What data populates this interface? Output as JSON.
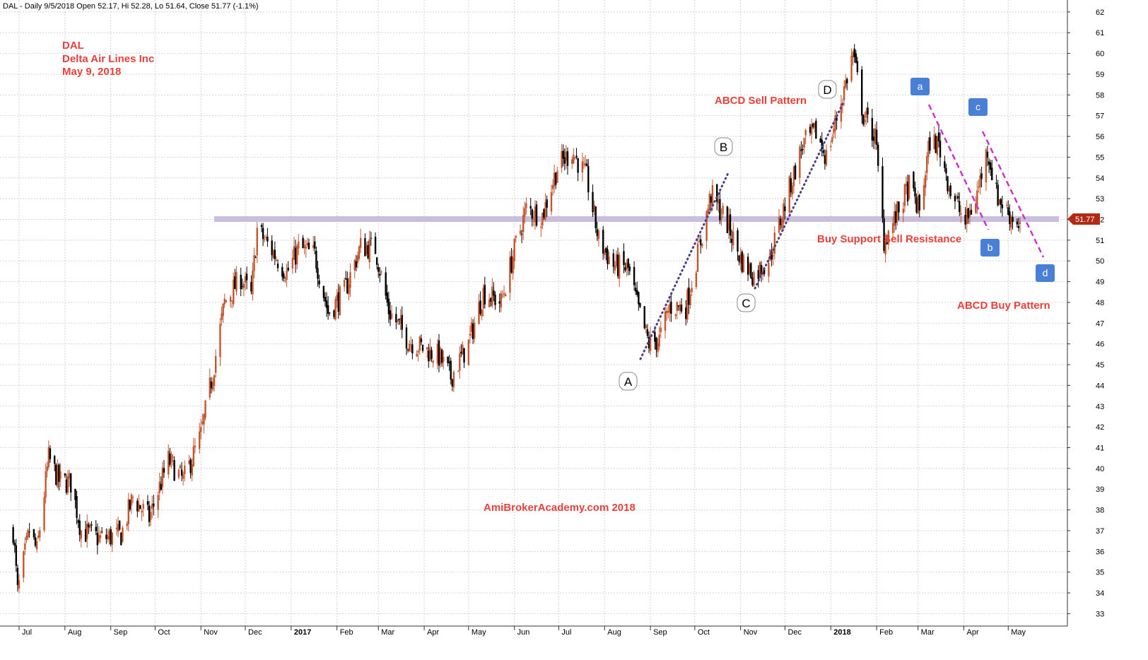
{
  "header": {
    "text": "DAL - Daily 9/5/2018 Open 52.17, Hi 52.28, Lo 51.64, Close 51.77 (-1.1%)"
  },
  "title_block": {
    "line1": "DAL",
    "line2": "Delta Air Lines Inc",
    "line3": "May 9, 2018"
  },
  "annotations": {
    "abcd_sell": "ABCD Sell Pattern",
    "abcd_buy": "ABCD Buy Pattern",
    "support_resistance": "Buy Support Sell Resistance",
    "watermark": "AmiBrokerAcademy.com   2018"
  },
  "colors": {
    "up_candle": "#c4552d",
    "down_candle": "#000000",
    "support_band": "#c9bedd",
    "sell_trend": "#4b3f8a",
    "buy_trend": "#cc33cc",
    "label_red": "#e8413c",
    "square_blue": "#4a7fd6",
    "price_tag": "#b22a14"
  },
  "chart_data": {
    "type": "candlestick",
    "title": "DAL - Daily",
    "ylim": [
      32.4,
      62.2
    ],
    "y_ticks": [
      33,
      34,
      35,
      36,
      37,
      38,
      39,
      40,
      41,
      42,
      43,
      44,
      45,
      46,
      47,
      48,
      49,
      50,
      51,
      52,
      53,
      54,
      55,
      56,
      57,
      58,
      59,
      60,
      61,
      62
    ],
    "last_price_label": "51.77",
    "support_level": 51.8,
    "x_ticks": [
      "Jul",
      "Aug",
      "Sep",
      "Oct",
      "Nov",
      "Dec",
      "2017",
      "Feb",
      "Mar",
      "Apr",
      "May",
      "Jun",
      "Jul",
      "Aug",
      "Sep",
      "Oct",
      "Nov",
      "Dec",
      "2018",
      "Feb",
      "Mar",
      "Apr",
      "May"
    ],
    "price_path": [
      {
        "date": "2016-06-27",
        "close": 37.0
      },
      {
        "date": "2016-06-30",
        "close": 34.0
      },
      {
        "date": "2016-07-08",
        "close": 37.0
      },
      {
        "date": "2016-07-13",
        "close": 36.0
      },
      {
        "date": "2016-07-21",
        "close": 40.5
      },
      {
        "date": "2016-07-28",
        "close": 39.4
      },
      {
        "date": "2016-08-05",
        "close": 39.3
      },
      {
        "date": "2016-08-12",
        "close": 37.0
      },
      {
        "date": "2016-08-25",
        "close": 36.6
      },
      {
        "date": "2016-09-08",
        "close": 36.8
      },
      {
        "date": "2016-09-16",
        "close": 38.6
      },
      {
        "date": "2016-09-27",
        "close": 37.6
      },
      {
        "date": "2016-10-10",
        "close": 40.4
      },
      {
        "date": "2016-10-20",
        "close": 39.4
      },
      {
        "date": "2016-11-01",
        "close": 41.6
      },
      {
        "date": "2016-11-09",
        "close": 44.6
      },
      {
        "date": "2016-11-17",
        "close": 48.0
      },
      {
        "date": "2016-11-28",
        "close": 49.2
      },
      {
        "date": "2016-12-05",
        "close": 48.3
      },
      {
        "date": "2016-12-09",
        "close": 51.5
      },
      {
        "date": "2016-12-20",
        "close": 50.4
      },
      {
        "date": "2016-12-29",
        "close": 49.4
      },
      {
        "date": "2017-01-06",
        "close": 50.6
      },
      {
        "date": "2017-01-17",
        "close": 50.3
      },
      {
        "date": "2017-01-26",
        "close": 47.5
      },
      {
        "date": "2017-02-06",
        "close": 48.5
      },
      {
        "date": "2017-02-17",
        "close": 50.7
      },
      {
        "date": "2017-02-27",
        "close": 50.6
      },
      {
        "date": "2017-03-08",
        "close": 47.6
      },
      {
        "date": "2017-03-21",
        "close": 46.2
      },
      {
        "date": "2017-03-31",
        "close": 45.8
      },
      {
        "date": "2017-04-11",
        "close": 45.4
      },
      {
        "date": "2017-04-19",
        "close": 44.4
      },
      {
        "date": "2017-05-01",
        "close": 46.0
      },
      {
        "date": "2017-05-11",
        "close": 48.5
      },
      {
        "date": "2017-05-23",
        "close": 48.0
      },
      {
        "date": "2017-06-02",
        "close": 50.8
      },
      {
        "date": "2017-06-09",
        "close": 52.5
      },
      {
        "date": "2017-06-20",
        "close": 52.2
      },
      {
        "date": "2017-06-30",
        "close": 54.5
      },
      {
        "date": "2017-07-10",
        "close": 55.3
      },
      {
        "date": "2017-07-20",
        "close": 54.0
      },
      {
        "date": "2017-07-28",
        "close": 51.0
      },
      {
        "date": "2017-08-07",
        "close": 49.8
      },
      {
        "date": "2017-08-17",
        "close": 49.6
      },
      {
        "date": "2017-08-24",
        "close": 47.6
      },
      {
        "date": "2017-08-31",
        "close": 46.0
      },
      {
        "date": "2017-09-07",
        "close": 46.2
      },
      {
        "date": "2017-09-14",
        "close": 47.8
      },
      {
        "date": "2017-09-25",
        "close": 47.8
      },
      {
        "date": "2017-10-02",
        "close": 50.0
      },
      {
        "date": "2017-10-12",
        "close": 53.2
      },
      {
        "date": "2017-10-23",
        "close": 51.8
      },
      {
        "date": "2017-11-01",
        "close": 50.1
      },
      {
        "date": "2017-11-10",
        "close": 49.3
      },
      {
        "date": "2017-11-21",
        "close": 50.2
      },
      {
        "date": "2017-12-04",
        "close": 53.5
      },
      {
        "date": "2017-12-13",
        "close": 55.6
      },
      {
        "date": "2017-12-22",
        "close": 56.2
      },
      {
        "date": "2017-12-29",
        "close": 55.0
      },
      {
        "date": "2018-01-09",
        "close": 58.0
      },
      {
        "date": "2018-01-16",
        "close": 60.0
      },
      {
        "date": "2018-01-23",
        "close": 57.0
      },
      {
        "date": "2018-01-31",
        "close": 56.0
      },
      {
        "date": "2018-02-06",
        "close": 51.0
      },
      {
        "date": "2018-02-12",
        "close": 51.8
      },
      {
        "date": "2018-02-23",
        "close": 53.6
      },
      {
        "date": "2018-03-02",
        "close": 52.4
      },
      {
        "date": "2018-03-09",
        "close": 55.8
      },
      {
        "date": "2018-03-15",
        "close": 55.6
      },
      {
        "date": "2018-03-23",
        "close": 53.4
      },
      {
        "date": "2018-04-02",
        "close": 51.8
      },
      {
        "date": "2018-04-09",
        "close": 53.0
      },
      {
        "date": "2018-04-17",
        "close": 55.4
      },
      {
        "date": "2018-04-23",
        "close": 53.2
      },
      {
        "date": "2018-05-01",
        "close": 52.3
      },
      {
        "date": "2018-05-09",
        "close": 51.77
      }
    ]
  },
  "pattern_labels": {
    "sell_points": {
      "A": "A",
      "B": "B",
      "C": "C",
      "D": "D"
    },
    "buy_points": {
      "a": "a",
      "b": "b",
      "c": "c",
      "d": "d"
    }
  }
}
